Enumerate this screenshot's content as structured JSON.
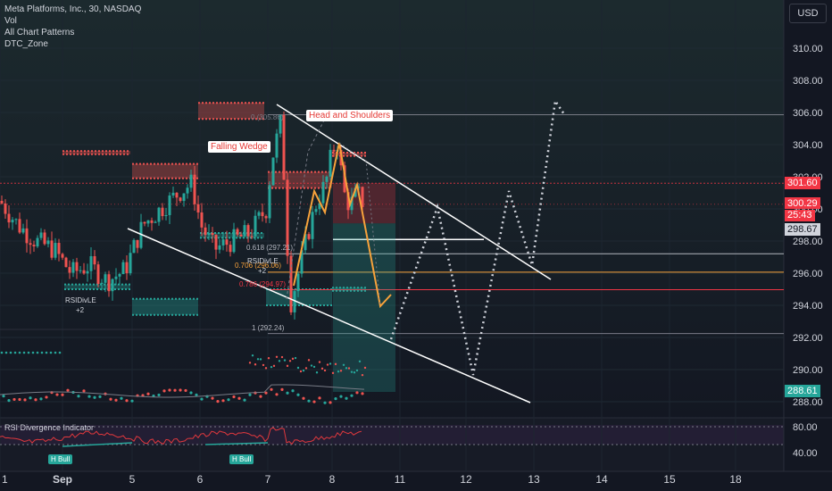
{
  "legend": {
    "symbol": "Meta Platforms, Inc., 30, NASDAQ",
    "indicators": [
      "Vol",
      "All Chart Patterns",
      "DTC_Zone"
    ]
  },
  "currency_button": "USD",
  "price_axis": [
    "310.00",
    "308.00",
    "306.00",
    "304.00",
    "302.00",
    "300.00",
    "298.00",
    "296.00",
    "294.00",
    "292.00",
    "290.00",
    "288.00"
  ],
  "price_tags": {
    "high_line": "301.60",
    "last_price": "300.29",
    "countdown": "25:43",
    "mid_line": "298.67",
    "bottom_line": "288.61"
  },
  "time_axis": [
    {
      "label": "1",
      "bold": false
    },
    {
      "label": "Sep",
      "bold": true
    },
    {
      "label": "5",
      "bold": false
    },
    {
      "label": "6",
      "bold": false
    },
    {
      "label": "7",
      "bold": false
    },
    {
      "label": "8",
      "bold": false
    },
    {
      "label": "11",
      "bold": false
    },
    {
      "label": "12",
      "bold": false
    },
    {
      "label": "13",
      "bold": false
    },
    {
      "label": "14",
      "bold": false
    },
    {
      "label": "15",
      "bold": false
    },
    {
      "label": "18",
      "bold": false
    }
  ],
  "patterns": {
    "head_shoulders": "Head and Shoulders",
    "falling_wedge": "Falling Wedge"
  },
  "fib_labels": {
    "l0618": "0.618 (297.21)",
    "l0706": "0.706 (296.06)",
    "l0786": "0.786 (294.97)",
    "l1": "1 (292.24)",
    "l0": "0 (305.86)"
  },
  "rsi": {
    "title": "RSI Divergence Indicator",
    "axis": [
      "80.00",
      "40.00"
    ],
    "hbull": [
      "H Bull",
      "H Bull"
    ],
    "divle_1": "RSIDivLE",
    "divle_1_count": "+2",
    "divle_2": "RSIDivLE",
    "divle_2_count": "+2"
  },
  "colors": {
    "background": "#131722",
    "up": "#26a69a",
    "down": "#ef5350",
    "accent_red": "#f23645",
    "pattern_orange": "#f7a23b",
    "projection": "#d1d4dc"
  }
}
